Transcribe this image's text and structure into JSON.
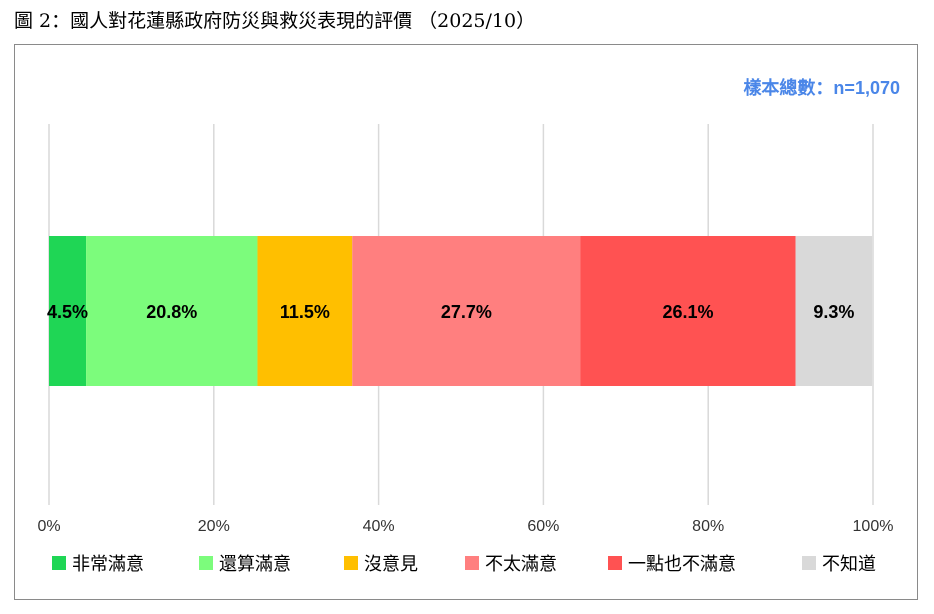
{
  "figure_title": "圖 2：國人對花蓮縣政府防災與救災表現的評價 （2025/10）",
  "sample_note": "樣本總數：n=1,070",
  "chart_data": {
    "type": "bar",
    "orientation": "horizontal-stacked-100",
    "categories": [
      ""
    ],
    "series": [
      {
        "name": "非常滿意",
        "values": [
          4.5
        ],
        "label": "4.5%",
        "color": "#1fd655"
      },
      {
        "name": "還算滿意",
        "values": [
          20.8
        ],
        "label": "20.8%",
        "color": "#7cfc7c"
      },
      {
        "name": "沒意見",
        "values": [
          11.5
        ],
        "label": "11.5%",
        "color": "#ffbf00"
      },
      {
        "name": "不太滿意",
        "values": [
          27.7
        ],
        "label": "27.7%",
        "color": "#ff7f7f"
      },
      {
        "name": "一點也不滿意",
        "values": [
          26.1
        ],
        "label": "26.1%",
        "color": "#ff5252"
      },
      {
        "name": "不知道",
        "values": [
          9.3
        ],
        "label": "9.3%",
        "color": "#d9d9d9"
      }
    ],
    "xlim": [
      0,
      100
    ],
    "x_ticks": [
      "0%",
      "20%",
      "40%",
      "60%",
      "80%",
      "100%"
    ],
    "grid": true,
    "legend_position": "bottom",
    "title": "",
    "xlabel": "",
    "ylabel": ""
  }
}
